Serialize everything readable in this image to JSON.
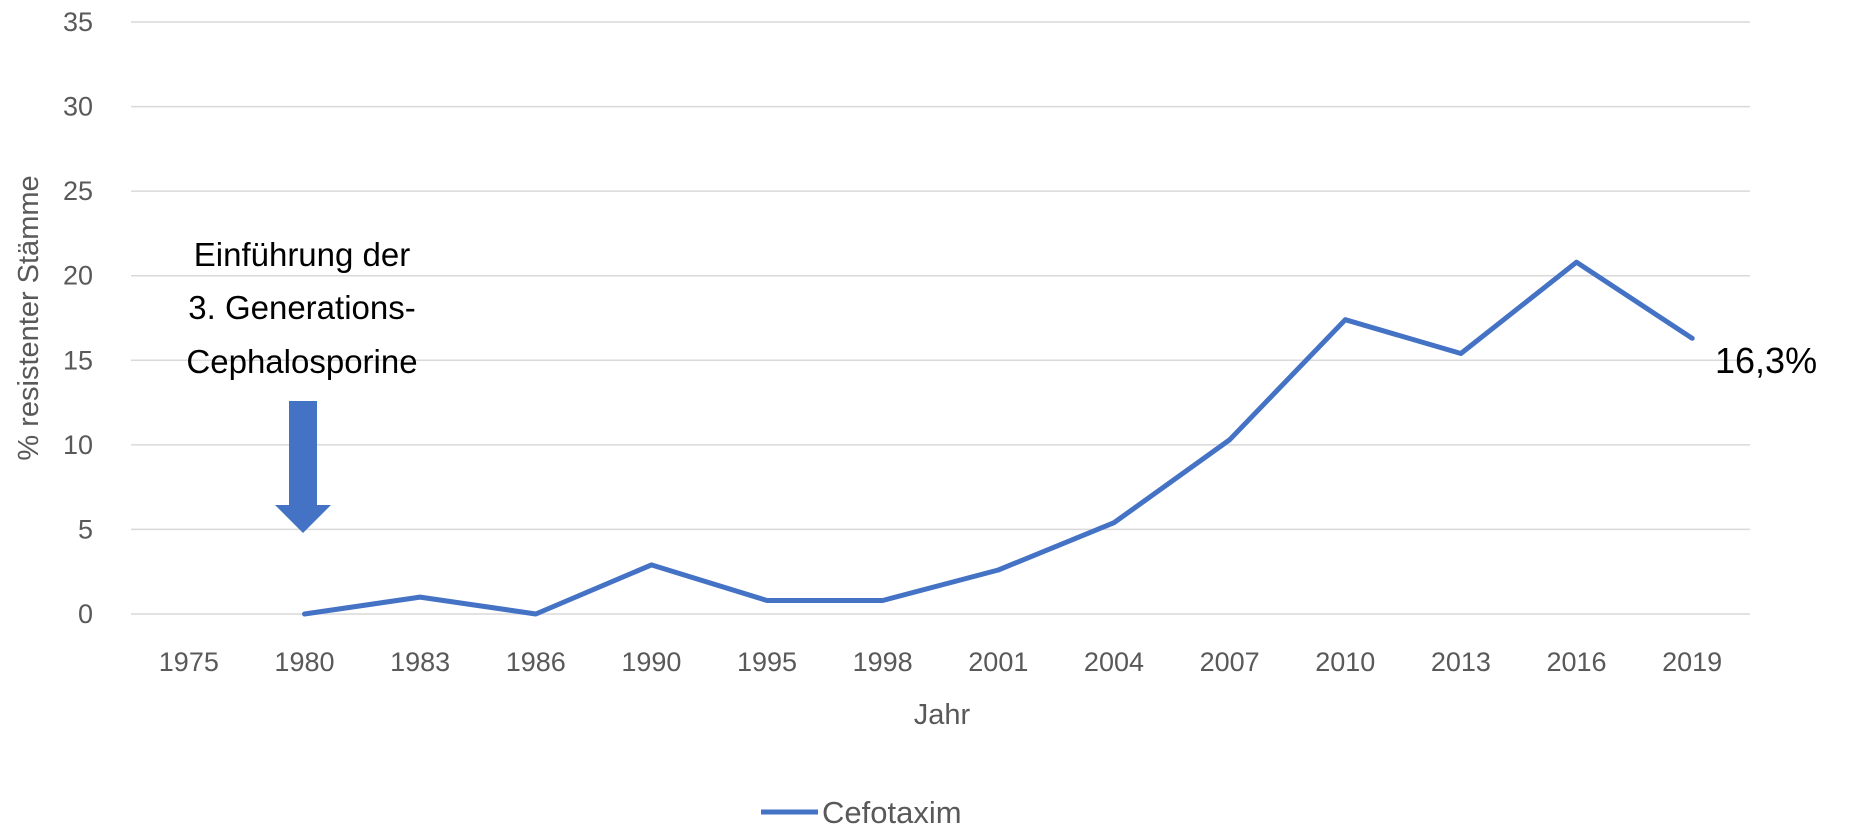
{
  "colors": {
    "series": "#4472C4",
    "grid": "#D9D9D9",
    "text": "#595959"
  },
  "chart_data": {
    "type": "line",
    "title": "",
    "xlabel": "Jahr",
    "ylabel": "% resistenter Stämme",
    "categories": [
      "1975",
      "1980",
      "1983",
      "1986",
      "1990",
      "1995",
      "1998",
      "2001",
      "2004",
      "2007",
      "2010",
      "2013",
      "2016",
      "2019"
    ],
    "ylim": [
      0,
      35
    ],
    "yticks": [
      "0",
      "5",
      "10",
      "15",
      "20",
      "25",
      "30",
      "35"
    ],
    "grid": "horizontal",
    "legend": "bottom",
    "series": [
      {
        "name": "Cefotaxim",
        "values": [
          null,
          0,
          1,
          0,
          2.9,
          0.8,
          0.8,
          2.6,
          5.4,
          10.3,
          17.4,
          15.4,
          20.8,
          16.3
        ]
      }
    ],
    "annotations": {
      "arrow_text": [
        "Einführung der",
        "3. Generations-",
        "Cephalosporine"
      ],
      "arrow_category": "1980",
      "end_label": "16,3%"
    }
  }
}
